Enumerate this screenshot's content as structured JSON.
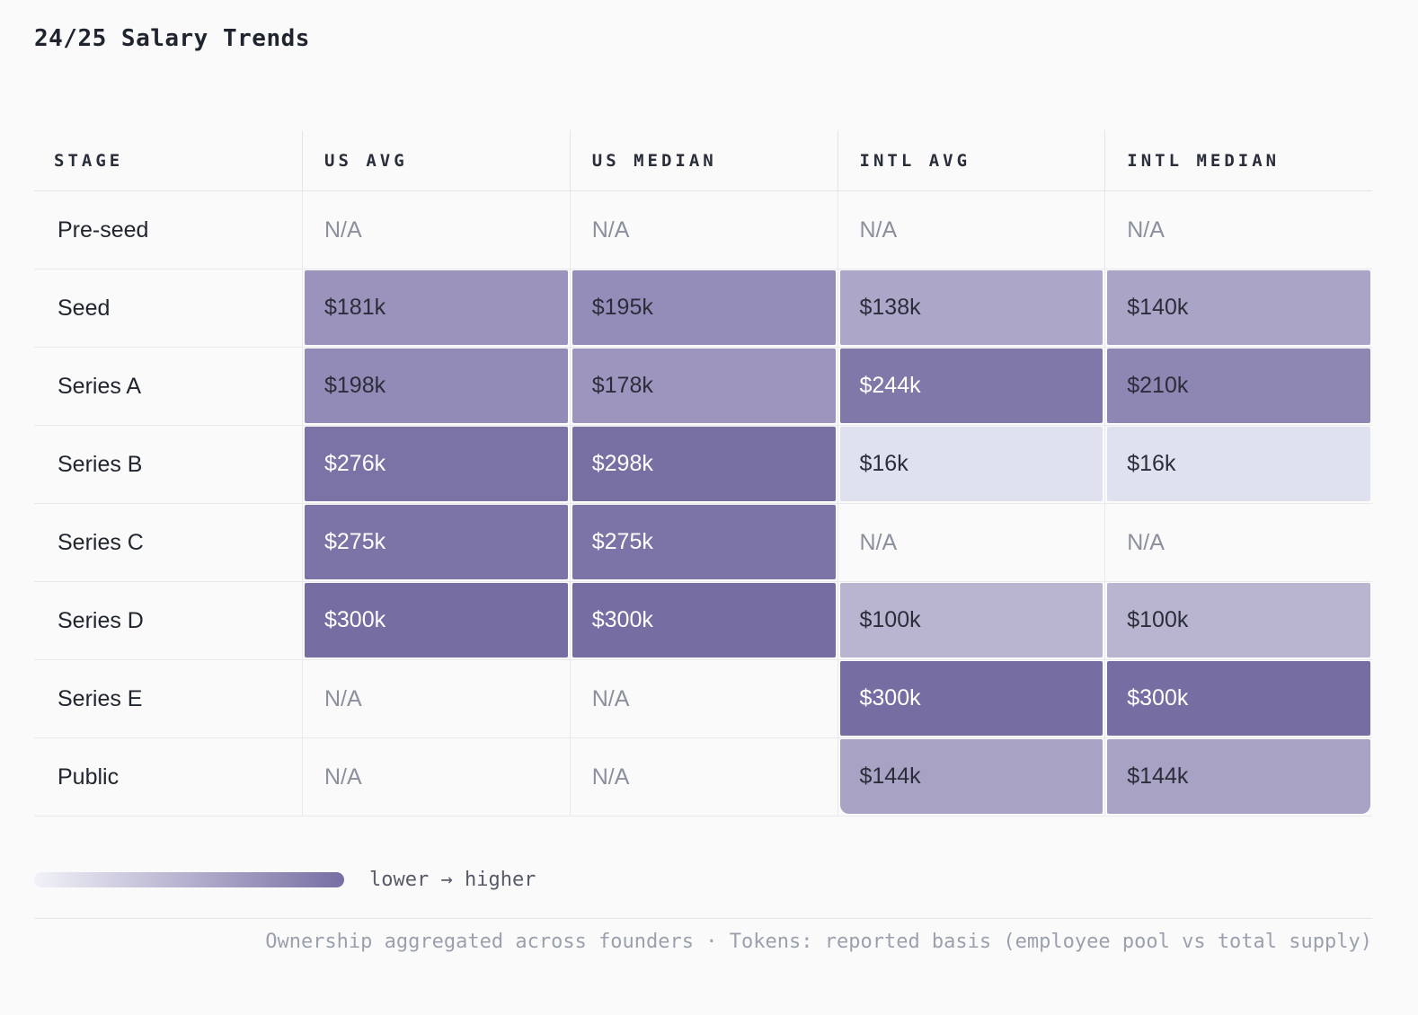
{
  "title": "24/25 Salary Trends",
  "table": {
    "columns": [
      "STAGE",
      "US AVG",
      "US MEDIAN",
      "INTL AVG",
      "INTL MEDIAN"
    ],
    "na_text_color": "#8B909C",
    "value_text_dark": "#2B2E3A",
    "value_text_light": "#FFFFFF",
    "rows": [
      {
        "stage": "Pre-seed",
        "cells": [
          {
            "text": "N/A"
          },
          {
            "text": "N/A"
          },
          {
            "text": "N/A"
          },
          {
            "text": "N/A"
          }
        ]
      },
      {
        "stage": "Seed",
        "cells": [
          {
            "text": "$181k",
            "bg": "#9B93BC",
            "fg": "#2B2E3A"
          },
          {
            "text": "$195k",
            "bg": "#958DB9",
            "fg": "#2B2E3A"
          },
          {
            "text": "$138k",
            "bg": "#ACA6C9",
            "fg": "#2B2E3A"
          },
          {
            "text": "$140k",
            "bg": "#AAA4C7",
            "fg": "#2B2E3A"
          }
        ]
      },
      {
        "stage": "Series A",
        "cells": [
          {
            "text": "$198k",
            "bg": "#938BB7",
            "fg": "#2B2E3A"
          },
          {
            "text": "$178k",
            "bg": "#9D95BE",
            "fg": "#2B2E3A"
          },
          {
            "text": "$244k",
            "bg": "#8078A9",
            "fg": "#FFFFFF"
          },
          {
            "text": "$210k",
            "bg": "#8E86B3",
            "fg": "#2B2E3A"
          }
        ]
      },
      {
        "stage": "Series B",
        "cells": [
          {
            "text": "$276k",
            "bg": "#7B72A5",
            "fg": "#FFFFFF"
          },
          {
            "text": "$298k",
            "bg": "#786FA3",
            "fg": "#FFFFFF"
          },
          {
            "text": "$16k",
            "bg": "#DFE2EE",
            "fg": "#2B2E3A"
          },
          {
            "text": "$16k",
            "bg": "#DFE2EE",
            "fg": "#2B2E3A"
          }
        ]
      },
      {
        "stage": "Series C",
        "cells": [
          {
            "text": "$275k",
            "bg": "#7C73A6",
            "fg": "#FFFFFF"
          },
          {
            "text": "$275k",
            "bg": "#7C73A6",
            "fg": "#FFFFFF"
          },
          {
            "text": "N/A"
          },
          {
            "text": "N/A"
          }
        ]
      },
      {
        "stage": "Series D",
        "cells": [
          {
            "text": "$300k",
            "bg": "#766DA2",
            "fg": "#FFFFFF"
          },
          {
            "text": "$300k",
            "bg": "#766DA2",
            "fg": "#FFFFFF"
          },
          {
            "text": "$100k",
            "bg": "#B9B5D1",
            "fg": "#2B2E3A"
          },
          {
            "text": "$100k",
            "bg": "#B9B5D1",
            "fg": "#2B2E3A"
          }
        ]
      },
      {
        "stage": "Series E",
        "cells": [
          {
            "text": "N/A"
          },
          {
            "text": "N/A"
          },
          {
            "text": "$300k",
            "bg": "#766DA2",
            "fg": "#FFFFFF"
          },
          {
            "text": "$300k",
            "bg": "#766DA2",
            "fg": "#FFFFFF"
          }
        ]
      },
      {
        "stage": "Public",
        "cells": [
          {
            "text": "N/A"
          },
          {
            "text": "N/A"
          },
          {
            "text": "$144k",
            "bg": "#A8A2C5",
            "fg": "#2B2E3A"
          },
          {
            "text": "$144k",
            "bg": "#A8A2C5",
            "fg": "#2B2E3A"
          }
        ]
      }
    ]
  },
  "legend": {
    "label": "lower → higher",
    "gradient_start": "#F1F2F8",
    "gradient_end": "#776EA3"
  },
  "footer": "Ownership aggregated across founders · Tokens: reported basis (employee pool vs total supply)",
  "chart_data": {
    "type": "heatmap",
    "title": "24/25 Salary Trends",
    "rows": [
      "Pre-seed",
      "Seed",
      "Series A",
      "Series B",
      "Series C",
      "Series D",
      "Series E",
      "Public"
    ],
    "columns": [
      "US Avg",
      "US Median",
      "Intl Avg",
      "Intl Median"
    ],
    "values_k_usd": [
      [
        null,
        null,
        null,
        null
      ],
      [
        181,
        195,
        138,
        140
      ],
      [
        198,
        178,
        244,
        210
      ],
      [
        276,
        298,
        16,
        16
      ],
      [
        275,
        275,
        null,
        null
      ],
      [
        300,
        300,
        100,
        100
      ],
      [
        null,
        null,
        300,
        300
      ],
      [
        null,
        null,
        144,
        144
      ]
    ],
    "color_scale": {
      "low": "#F1F2F8",
      "high": "#766DA2",
      "legend_label": "lower → higher"
    },
    "legend_position": "bottom-left"
  }
}
